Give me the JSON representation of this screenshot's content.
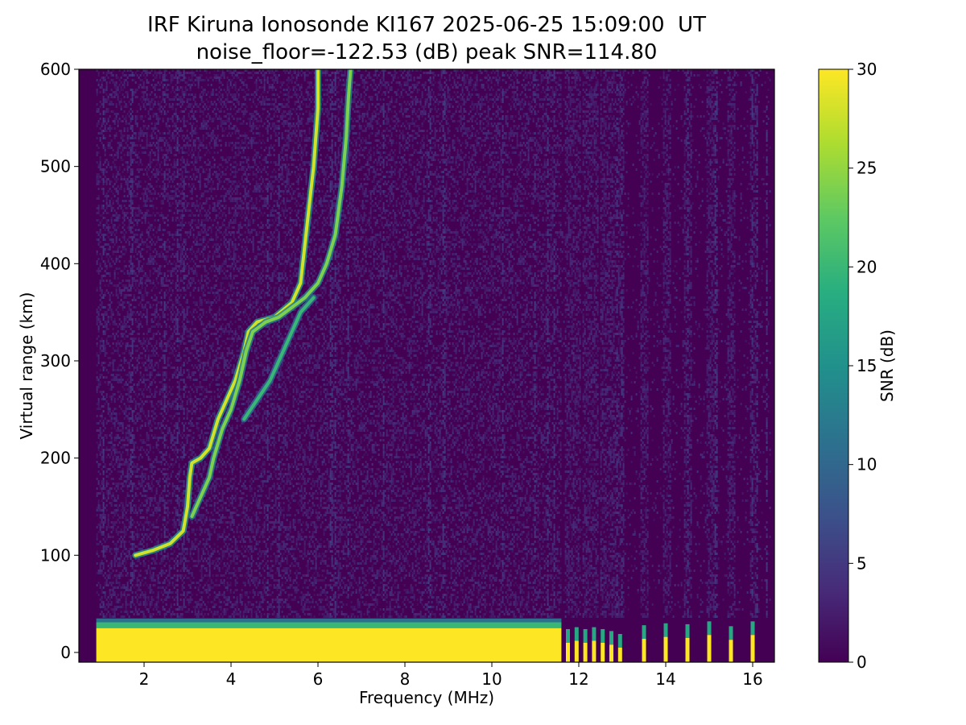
{
  "chart_data": {
    "type": "heatmap",
    "title_line1": "IRF Kiruna Ionosonde KI167 2025-06-25 15:09:00  UT",
    "title_line2": "noise_floor=-122.53 (dB) peak SNR=114.80",
    "xlabel": "Frequency (MHz)",
    "ylabel": "Virtual range (km)",
    "colorbar_label": "SNR (dB)",
    "colormap": "viridis",
    "xlim": [
      0.5,
      16.5
    ],
    "ylim": [
      -10,
      600
    ],
    "clim": [
      0,
      30
    ],
    "xticks": [
      2,
      4,
      6,
      8,
      10,
      12,
      14,
      16
    ],
    "yticks": [
      0,
      100,
      200,
      300,
      400,
      500,
      600
    ],
    "cticks": [
      0,
      5,
      10,
      15,
      20,
      25,
      30
    ],
    "sweep_range_mhz": [
      0.9,
      16.4
    ],
    "noise_snr_db": [
      0,
      3
    ],
    "ground_clutter": {
      "continuous_range_mhz": [
        0.9,
        11.6
      ],
      "max_range_km": 25,
      "fringe_snr_db": 20,
      "weak_fringe_km": 35,
      "snr_db": 30
    },
    "discrete_channels_mhz": [
      11.75,
      11.95,
      12.15,
      12.35,
      12.55,
      12.75,
      12.95,
      13.5,
      14.0,
      14.5,
      15.0,
      15.5,
      16.0
    ],
    "discrete_channel_tops_km": [
      10,
      12,
      10,
      12,
      10,
      8,
      5,
      14,
      16,
      15,
      18,
      13,
      18
    ],
    "echo_traces": [
      {
        "snr_db": 28,
        "points": [
          [
            1.8,
            100
          ],
          [
            2.2,
            105
          ],
          [
            2.6,
            112
          ],
          [
            2.9,
            125
          ],
          [
            3.0,
            150
          ],
          [
            3.05,
            180
          ],
          [
            3.1,
            195
          ],
          [
            3.3,
            200
          ],
          [
            3.5,
            210
          ],
          [
            3.7,
            240
          ],
          [
            3.9,
            260
          ],
          [
            4.1,
            280
          ],
          [
            4.3,
            310
          ],
          [
            4.4,
            330
          ],
          [
            4.6,
            340
          ],
          [
            5.0,
            345
          ],
          [
            5.4,
            360
          ],
          [
            5.6,
            380
          ],
          [
            5.7,
            420
          ],
          [
            5.8,
            460
          ],
          [
            5.9,
            500
          ],
          [
            6.0,
            560
          ],
          [
            6.0,
            600
          ]
        ]
      },
      {
        "snr_db": 24,
        "points": [
          [
            3.1,
            140
          ],
          [
            3.3,
            160
          ],
          [
            3.5,
            180
          ],
          [
            3.6,
            200
          ],
          [
            3.8,
            230
          ],
          [
            4.0,
            250
          ],
          [
            4.2,
            280
          ],
          [
            4.35,
            310
          ],
          [
            4.5,
            330
          ],
          [
            4.8,
            340
          ],
          [
            5.1,
            345
          ],
          [
            5.4,
            355
          ],
          [
            5.7,
            365
          ],
          [
            6.0,
            380
          ],
          [
            6.2,
            400
          ],
          [
            6.4,
            430
          ],
          [
            6.55,
            480
          ],
          [
            6.65,
            530
          ],
          [
            6.7,
            570
          ],
          [
            6.75,
            600
          ]
        ]
      },
      {
        "snr_db": 20,
        "points": [
          [
            4.3,
            240
          ],
          [
            4.6,
            260
          ],
          [
            4.9,
            280
          ],
          [
            5.1,
            300
          ],
          [
            5.3,
            320
          ],
          [
            5.6,
            350
          ],
          [
            5.9,
            365
          ]
        ]
      }
    ]
  }
}
